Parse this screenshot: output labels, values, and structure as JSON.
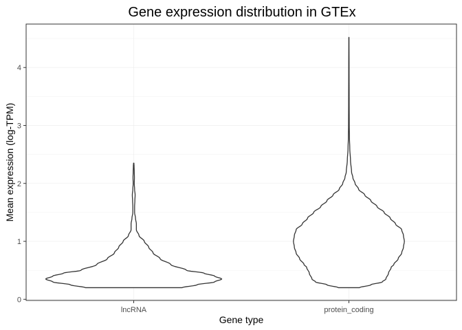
{
  "chart_data": {
    "type": "violin",
    "title": "Gene expression distribution in GTEx",
    "xlabel": "Gene type",
    "ylabel": "Mean expression (log-TPM)",
    "categories": [
      "lncRNA",
      "protein_coding"
    ],
    "ylim": [
      -0.02,
      4.75
    ],
    "yticks": [
      0,
      1,
      2,
      3,
      4
    ],
    "ytick_labels": [
      "0",
      "1",
      "2",
      "3",
      "4"
    ],
    "grid": true,
    "series": [
      {
        "name": "lncRNA",
        "min": 0.2,
        "max": 2.35,
        "density_profile": [
          [
            0.2,
            0.55
          ],
          [
            0.25,
            0.72
          ],
          [
            0.3,
            0.92
          ],
          [
            0.35,
            1.0
          ],
          [
            0.4,
            0.92
          ],
          [
            0.45,
            0.8
          ],
          [
            0.5,
            0.6
          ],
          [
            0.6,
            0.42
          ],
          [
            0.7,
            0.3
          ],
          [
            0.8,
            0.22
          ],
          [
            0.9,
            0.17
          ],
          [
            1.0,
            0.12
          ],
          [
            1.1,
            0.06
          ],
          [
            1.2,
            0.03
          ],
          [
            1.3,
            0.03
          ],
          [
            1.4,
            0.02
          ],
          [
            1.5,
            0.01
          ],
          [
            1.6,
            0.01
          ],
          [
            1.7,
            0.013
          ],
          [
            1.8,
            0.016
          ],
          [
            1.9,
            0.01
          ],
          [
            2.0,
            0.006
          ],
          [
            2.1,
            0.008
          ],
          [
            2.2,
            0.006
          ],
          [
            2.3,
            0.004
          ],
          [
            2.35,
            0.002
          ]
        ]
      },
      {
        "name": "protein_coding",
        "min": 0.2,
        "max": 4.52,
        "density_profile": [
          [
            0.2,
            0.12
          ],
          [
            0.25,
            0.25
          ],
          [
            0.3,
            0.38
          ],
          [
            0.35,
            0.42
          ],
          [
            0.45,
            0.45
          ],
          [
            0.55,
            0.48
          ],
          [
            0.6,
            0.51
          ],
          [
            0.7,
            0.56
          ],
          [
            0.8,
            0.6
          ],
          [
            0.9,
            0.62
          ],
          [
            1.0,
            0.63
          ],
          [
            1.1,
            0.62
          ],
          [
            1.2,
            0.6
          ],
          [
            1.3,
            0.53
          ],
          [
            1.4,
            0.47
          ],
          [
            1.5,
            0.4
          ],
          [
            1.6,
            0.32
          ],
          [
            1.7,
            0.25
          ],
          [
            1.8,
            0.18
          ],
          [
            1.9,
            0.11
          ],
          [
            2.0,
            0.07
          ],
          [
            2.1,
            0.045
          ],
          [
            2.2,
            0.03
          ],
          [
            2.4,
            0.018
          ],
          [
            2.6,
            0.01
          ],
          [
            2.8,
            0.006
          ],
          [
            3.0,
            0.004
          ],
          [
            3.4,
            0.003
          ],
          [
            4.0,
            0.002
          ],
          [
            4.52,
            0.001
          ]
        ]
      }
    ]
  }
}
